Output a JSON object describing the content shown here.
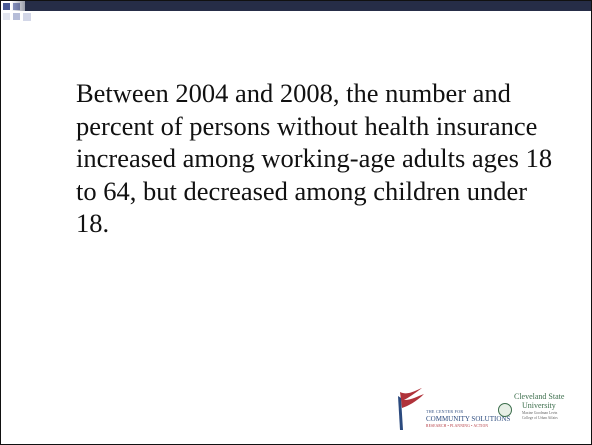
{
  "slide": {
    "body": "Between 2004 and 2008, the number and percent of persons without health insurance increased among working-age adults ages 18 to 64, but decreased among children under 18."
  },
  "logos": {
    "ccs": {
      "line1": "THE CENTER FOR",
      "line2": "COMMUNITY SOLUTIONS",
      "tagline": "RESEARCH • PLANNING • ACTION"
    },
    "csu": {
      "line1": "Cleveland State",
      "line2": "University",
      "line3": "Maxine Goodman Levin",
      "line4": "College of Urban Affairs"
    }
  },
  "colors": {
    "bar": "#262d47",
    "ccs_blue": "#2b4a7e",
    "ccs_red": "#b0323a",
    "csu_green": "#3c6e4c"
  }
}
